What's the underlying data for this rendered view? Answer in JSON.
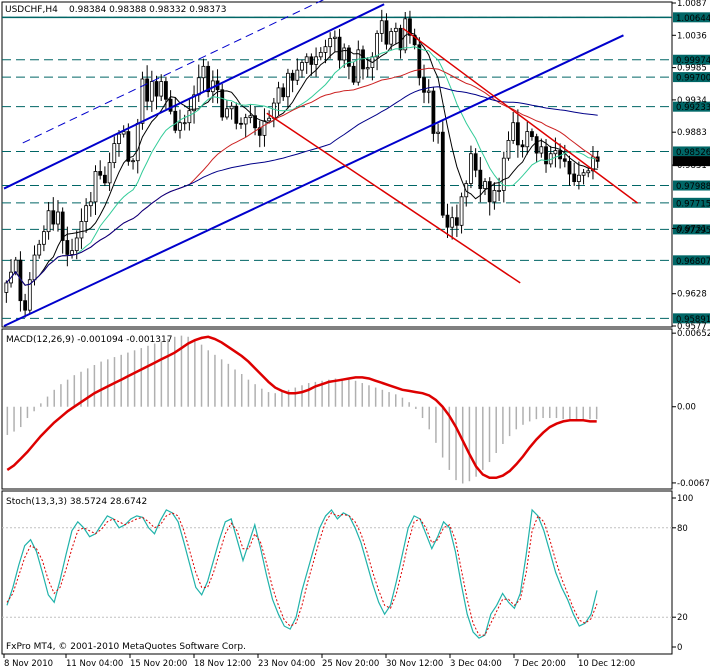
{
  "header": {
    "symbol": "USDCHF,H4",
    "ohlc": "0.98384 0.98388 0.98332 0.98373"
  },
  "footer": {
    "copyright": "FxPro MT4, © 2001-2010 MetaQuotes Software Corp."
  },
  "colors": {
    "candle": "#000000",
    "channel": "#0000cc",
    "downtrend": "#dd0000",
    "ma_black": "#000000",
    "ma_green": "#33cc99",
    "ma_red": "#cc2222",
    "ma_navy": "#000088",
    "support": "#006666",
    "macd_signal": "#dd0000",
    "macd_hist": "#b0b0b0",
    "stoch_main": "#20b2aa",
    "stoch_signal": "#dd0000"
  },
  "chart_data": [
    {
      "type": "candlestick",
      "title": "USDCHF,H4",
      "ylim": [
        0.9577,
        1.0087
      ],
      "yticks": [
        1.0087,
        1.0036,
        0.9985,
        0.9934,
        0.9883,
        0.9831,
        0.9731,
        0.9628,
        0.9577
      ],
      "x_tick_labels": [
        "8 Nov 2010",
        "11 Nov 04:00",
        "15 Nov 20:00",
        "18 Nov 12:00",
        "23 Nov 04:00",
        "25 Nov 20:00",
        "30 Nov 12:00",
        "3 Dec 04:00",
        "7 Dec 20:00",
        "10 Dec 12:00"
      ],
      "horizontal_levels": [
        "1.00644",
        "0.99974",
        "0.99700",
        "0.99233",
        "0.98526",
        "0.97988",
        "0.97715",
        "0.97295",
        "0.96807",
        "0.95891"
      ],
      "current_price": "0.98373",
      "closes": [
        0.9645,
        0.9662,
        0.9681,
        0.9617,
        0.9602,
        0.965,
        0.9689,
        0.9706,
        0.9726,
        0.9759,
        0.9738,
        0.9757,
        0.9712,
        0.969,
        0.9696,
        0.9716,
        0.9742,
        0.9767,
        0.9773,
        0.9821,
        0.9815,
        0.9803,
        0.9835,
        0.9865,
        0.988,
        0.9884,
        0.9837,
        0.9838,
        0.9897,
        0.9967,
        0.9932,
        0.9963,
        0.994,
        0.9963,
        0.9935,
        0.9916,
        0.9886,
        0.9898,
        0.9898,
        0.9917,
        0.9942,
        0.9969,
        0.9987,
        0.9947,
        0.9964,
        0.995,
        0.9907,
        0.992,
        0.9924,
        0.9897,
        0.9896,
        0.9906,
        0.9909,
        0.989,
        0.9878,
        0.9901,
        0.9905,
        0.9929,
        0.9953,
        0.9939,
        0.9976,
        0.9965,
        0.9981,
        0.9993,
        1.0002,
        0.999,
        1.0002,
        1.0009,
        1.0018,
        1.0031,
        1.0033,
        0.9997,
        1.0016,
        0.9987,
        0.9962,
        1.0013,
        0.9983,
        0.9985,
        1.0002,
        1.0039,
        1.0059,
        1.0022,
        1.0042,
        1.0047,
        1.0013,
        1.0062,
        1.0036,
        1.0021,
        0.9969,
        0.9946,
        0.9948,
        0.9881,
        0.9883,
        0.9752,
        0.9733,
        0.9748,
        0.9736,
        0.9781,
        0.9802,
        0.9849,
        0.9823,
        0.9794,
        0.9805,
        0.9773,
        0.9791,
        0.9791,
        0.9842,
        0.987,
        0.9898,
        0.9863,
        0.986,
        0.9884,
        0.9876,
        0.985,
        0.986,
        0.9833,
        0.9849,
        0.9854,
        0.9841,
        0.9837,
        0.9817,
        0.9805,
        0.9815,
        0.9819,
        0.9822,
        0.9844,
        0.9837
      ],
      "indicators": [
        "moving averages",
        "channel lines",
        "trend lines"
      ]
    },
    {
      "type": "line",
      "title": "MACD(12,26,9) -0.001094 -0.001317",
      "series": [
        {
          "name": "MACD",
          "values": []
        },
        {
          "name": "Signal",
          "values": [
            -0.0056,
            -0.0052,
            -0.0046,
            -0.004,
            -0.0033,
            -0.0026,
            -0.002,
            -0.0014,
            -0.0009,
            -0.0004,
            0.0,
            0.0004,
            0.0008,
            0.0012,
            0.0015,
            0.0018,
            0.0021,
            0.0024,
            0.0027,
            0.003,
            0.0033,
            0.0036,
            0.0039,
            0.0042,
            0.0045,
            0.0048,
            0.0052,
            0.0056,
            0.0059,
            0.0061,
            0.0062,
            0.006,
            0.0057,
            0.0053,
            0.0049,
            0.0045,
            0.004,
            0.0034,
            0.0028,
            0.0022,
            0.0017,
            0.0014,
            0.0012,
            0.0012,
            0.0013,
            0.0015,
            0.0018,
            0.002,
            0.0022,
            0.0023,
            0.0024,
            0.0025,
            0.0026,
            0.0026,
            0.0025,
            0.0023,
            0.0021,
            0.0019,
            0.0017,
            0.0015,
            0.0014,
            0.0013,
            0.0012,
            0.001,
            0.0006,
            0.0,
            -0.0008,
            -0.0018,
            -0.003,
            -0.0042,
            -0.0053,
            -0.006,
            -0.0063,
            -0.0063,
            -0.0061,
            -0.0057,
            -0.0051,
            -0.0044,
            -0.0036,
            -0.0029,
            -0.0023,
            -0.0018,
            -0.0015,
            -0.0013,
            -0.0012,
            -0.0012,
            -0.0012,
            -0.0013,
            -0.0013
          ]
        }
      ],
      "histogram": [
        -0.0025,
        -0.0022,
        -0.0018,
        -0.001,
        -0.0004,
        0.0003,
        0.0009,
        0.0015,
        0.002,
        0.0024,
        0.0028,
        0.0031,
        0.0034,
        0.0037,
        0.004,
        0.0042,
        0.0044,
        0.0046,
        0.0048,
        0.005,
        0.0052,
        0.0054,
        0.0056,
        0.0058,
        0.006,
        0.0062,
        0.0063,
        0.0062,
        0.0059,
        0.0055,
        0.005,
        0.0046,
        0.0042,
        0.0038,
        0.0033,
        0.0029,
        0.0024,
        0.002,
        0.0016,
        0.0013,
        0.0012,
        0.0013,
        0.0015,
        0.0017,
        0.0019,
        0.0021,
        0.0022,
        0.0023,
        0.0024,
        0.0025,
        0.0025,
        0.0024,
        0.0023,
        0.0021,
        0.0019,
        0.0017,
        0.0015,
        0.0013,
        0.0011,
        0.0008,
        0.0004,
        -0.0002,
        -0.001,
        -0.002,
        -0.0032,
        -0.0045,
        -0.0056,
        -0.0065,
        -0.0068,
        -0.0066,
        -0.0062,
        -0.0056,
        -0.0049,
        -0.0041,
        -0.0033,
        -0.0026,
        -0.002,
        -0.0016,
        -0.0013,
        -0.0011,
        -0.001,
        -0.001,
        -0.001,
        -0.0011,
        -0.0011,
        -0.0011,
        -0.0011,
        -0.0011,
        -0.0011
      ],
      "yticks": [
        0.00652,
        0.0,
        -0.00675
      ],
      "ytick_labels": [
        "0.00652",
        "0.00",
        "-0.00675"
      ],
      "ylim": [
        -0.0072,
        0.0068
      ]
    },
    {
      "type": "line",
      "title": "Stoch(13,3,3) 38.5724 28.6742",
      "ylim": [
        0,
        100
      ],
      "yticks": [
        100,
        80,
        20,
        0
      ],
      "series": [
        {
          "name": "Main",
          "values": [
            28,
            40,
            55,
            68,
            72,
            64,
            50,
            35,
            30,
            45,
            62,
            78,
            84,
            80,
            74,
            76,
            82,
            88,
            86,
            80,
            82,
            86,
            88,
            87,
            80,
            76,
            85,
            92,
            90,
            84,
            70,
            55,
            40,
            35,
            44,
            58,
            72,
            84,
            86,
            72,
            58,
            70,
            82,
            66,
            48,
            32,
            22,
            14,
            12,
            20,
            38,
            52,
            66,
            80,
            88,
            92,
            86,
            90,
            88,
            80,
            70,
            56,
            42,
            30,
            22,
            28,
            44,
            62,
            80,
            88,
            86,
            76,
            66,
            74,
            84,
            80,
            64,
            42,
            22,
            10,
            6,
            8,
            22,
            28,
            36,
            30,
            26,
            36,
            62,
            92,
            88,
            78,
            64,
            50,
            40,
            32,
            22,
            14,
            16,
            22,
            38
          ]
        },
        {
          "name": "Signal",
          "values": [
            30,
            36,
            48,
            60,
            68,
            66,
            58,
            45,
            36,
            40,
            52,
            66,
            78,
            80,
            78,
            76,
            79,
            84,
            86,
            84,
            82,
            84,
            86,
            87,
            84,
            80,
            82,
            88,
            90,
            88,
            78,
            64,
            50,
            40,
            40,
            50,
            63,
            76,
            83,
            78,
            66,
            66,
            76,
            70,
            56,
            40,
            28,
            18,
            14,
            16,
            28,
            44,
            58,
            72,
            84,
            90,
            88,
            89,
            88,
            84,
            76,
            64,
            50,
            38,
            28,
            26,
            36,
            52,
            70,
            84,
            86,
            80,
            70,
            72,
            80,
            82,
            72,
            52,
            32,
            16,
            8,
            8,
            16,
            24,
            32,
            32,
            28,
            32,
            50,
            78,
            88,
            84,
            72,
            58,
            46,
            36,
            26,
            18,
            16,
            19,
            29
          ]
        }
      ],
      "ytick_labels": [
        "100",
        "80",
        "20",
        "0"
      ]
    }
  ]
}
